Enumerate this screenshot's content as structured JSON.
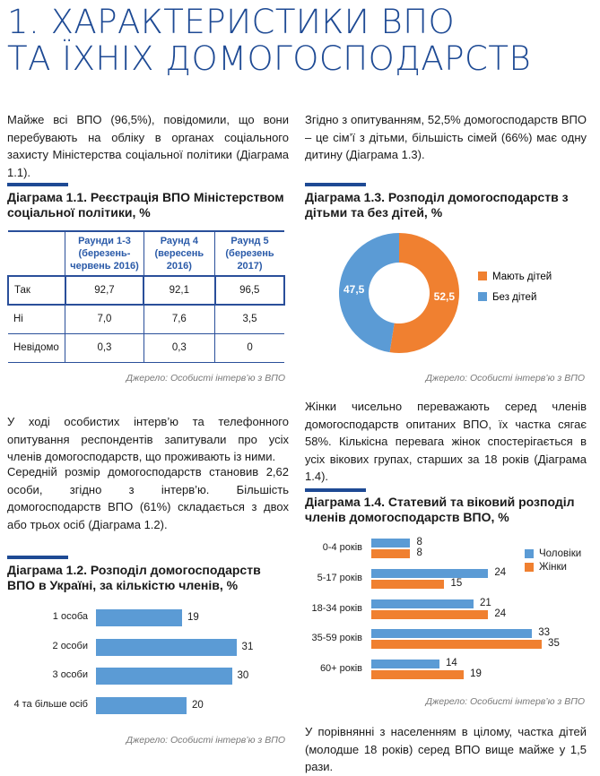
{
  "header": {
    "title_line1": "1. ХАРАКТЕРИСТИКИ ВПО",
    "title_line2": "ТА ЇХНІХ ДОМОГОСПОДАРСТВ"
  },
  "colors": {
    "brand_blue": "#1e4a94",
    "orange": "#f08030",
    "light_blue": "#5b9bd5"
  },
  "left": {
    "para1": "Майже всі ВПО (96,5%), повідомили, що вони перебувають на обліку в органах соціального захисту Міністерства соціальної політики (Діаграма 1.1).",
    "diagram11": {
      "title": "Діаграма 1.1. Реєстрація ВПО Міністерством соціальної політики, %",
      "headers": [
        "",
        "Раунди 1-3 (березень-червень 2016)",
        "Раунд 4 (вересень 2016)",
        "Раунд 5 (березень 2017)"
      ],
      "rows": [
        [
          "Так",
          "92,7",
          "92,1",
          "96,5"
        ],
        [
          "Ні",
          "7,0",
          "7,6",
          "3,5"
        ],
        [
          "Невідомо",
          "0,3",
          "0,3",
          "0"
        ]
      ],
      "source": "Джерело: Особисті інтерв’ю з ВПО"
    },
    "para2": "У ході особистих інтерв’ю та телефонного опитування респондентів запитували про усіх членів домогосподарств, що проживають із ними.",
    "para3": "Середній розмір домогосподарств становив 2,62 особи, згідно з інтерв’ю. Більшість домогосподарств ВПО (61%) складається з двох або трьох осіб (Діаграма 1.2).",
    "diagram12": {
      "title": "Діаграма 1.2. Розподіл домогосподарств ВПО в Україні, за кількістю членів, %",
      "source": "Джерело: Особисті інтерв’ю з ВПО"
    }
  },
  "right": {
    "para1": "Згідно з опитуванням, 52,5% домогосподарств ВПО – це сім’ї з дітьми, більшість сімей (66%) має одну дитину (Діаграма 1.3).",
    "diagram13": {
      "title": "Діаграма 1.3. Розподіл домогосподарств з дітьми та без дітей, %",
      "source": "Джерело: Особисті інтерв’ю з ВПО"
    },
    "para2": "Жінки чисельно переважають серед членів домогосподарств опитаних ВПО, їх частка сягає 58%. Кількісна перевага жінок спостерігається в усіх вікових групах, старших за 18 років (Діаграма 1.4).",
    "diagram14": {
      "title": "Діаграма 1.4. Статевий та віковий розподіл членів домогосподарств ВПО, %",
      "source": "Джерело: Особисті інтерв’ю з ВПО"
    },
    "para3": "У порівнянні з населенням в цілому, частка дітей (молодше 18 років) серед ВПО вище майже у 1,5 рази."
  },
  "chart_data": [
    {
      "type": "bar",
      "orientation": "horizontal",
      "title": "Діаграма 1.2. Розподіл домогосподарств ВПО в Україні, за кількістю членів, %",
      "categories": [
        "1 особа",
        "2 особи",
        "3 особи",
        "4 та більше осіб"
      ],
      "values": [
        19,
        31,
        30,
        20
      ],
      "labels": [
        "19",
        "31",
        "30",
        "20"
      ]
    },
    {
      "type": "pie",
      "donut": true,
      "title": "Діаграма 1.3. Розподіл домогосподарств з дітьми та без дітей, %",
      "categories": [
        "Мають дітей",
        "Без дітей"
      ],
      "values": [
        52.5,
        47.5
      ],
      "labels": [
        "52,5",
        "47,5"
      ],
      "colors": [
        "#f08030",
        "#5b9bd5"
      ],
      "legend": "right"
    },
    {
      "type": "bar",
      "orientation": "horizontal",
      "title": "Діаграма 1.4. Статевий та віковий розподіл членів домогосподарств ВПО, %",
      "categories": [
        "0-4 років",
        "5-17 років",
        "18-34 років",
        "35-59 років",
        "60+ років"
      ],
      "series": [
        {
          "name": "Чоловіки",
          "values": [
            8,
            24,
            21,
            33,
            14
          ],
          "color": "#5b9bd5"
        },
        {
          "name": "Жінки",
          "values": [
            8,
            15,
            24,
            35,
            19
          ],
          "color": "#f08030"
        }
      ],
      "legend": "right"
    }
  ]
}
